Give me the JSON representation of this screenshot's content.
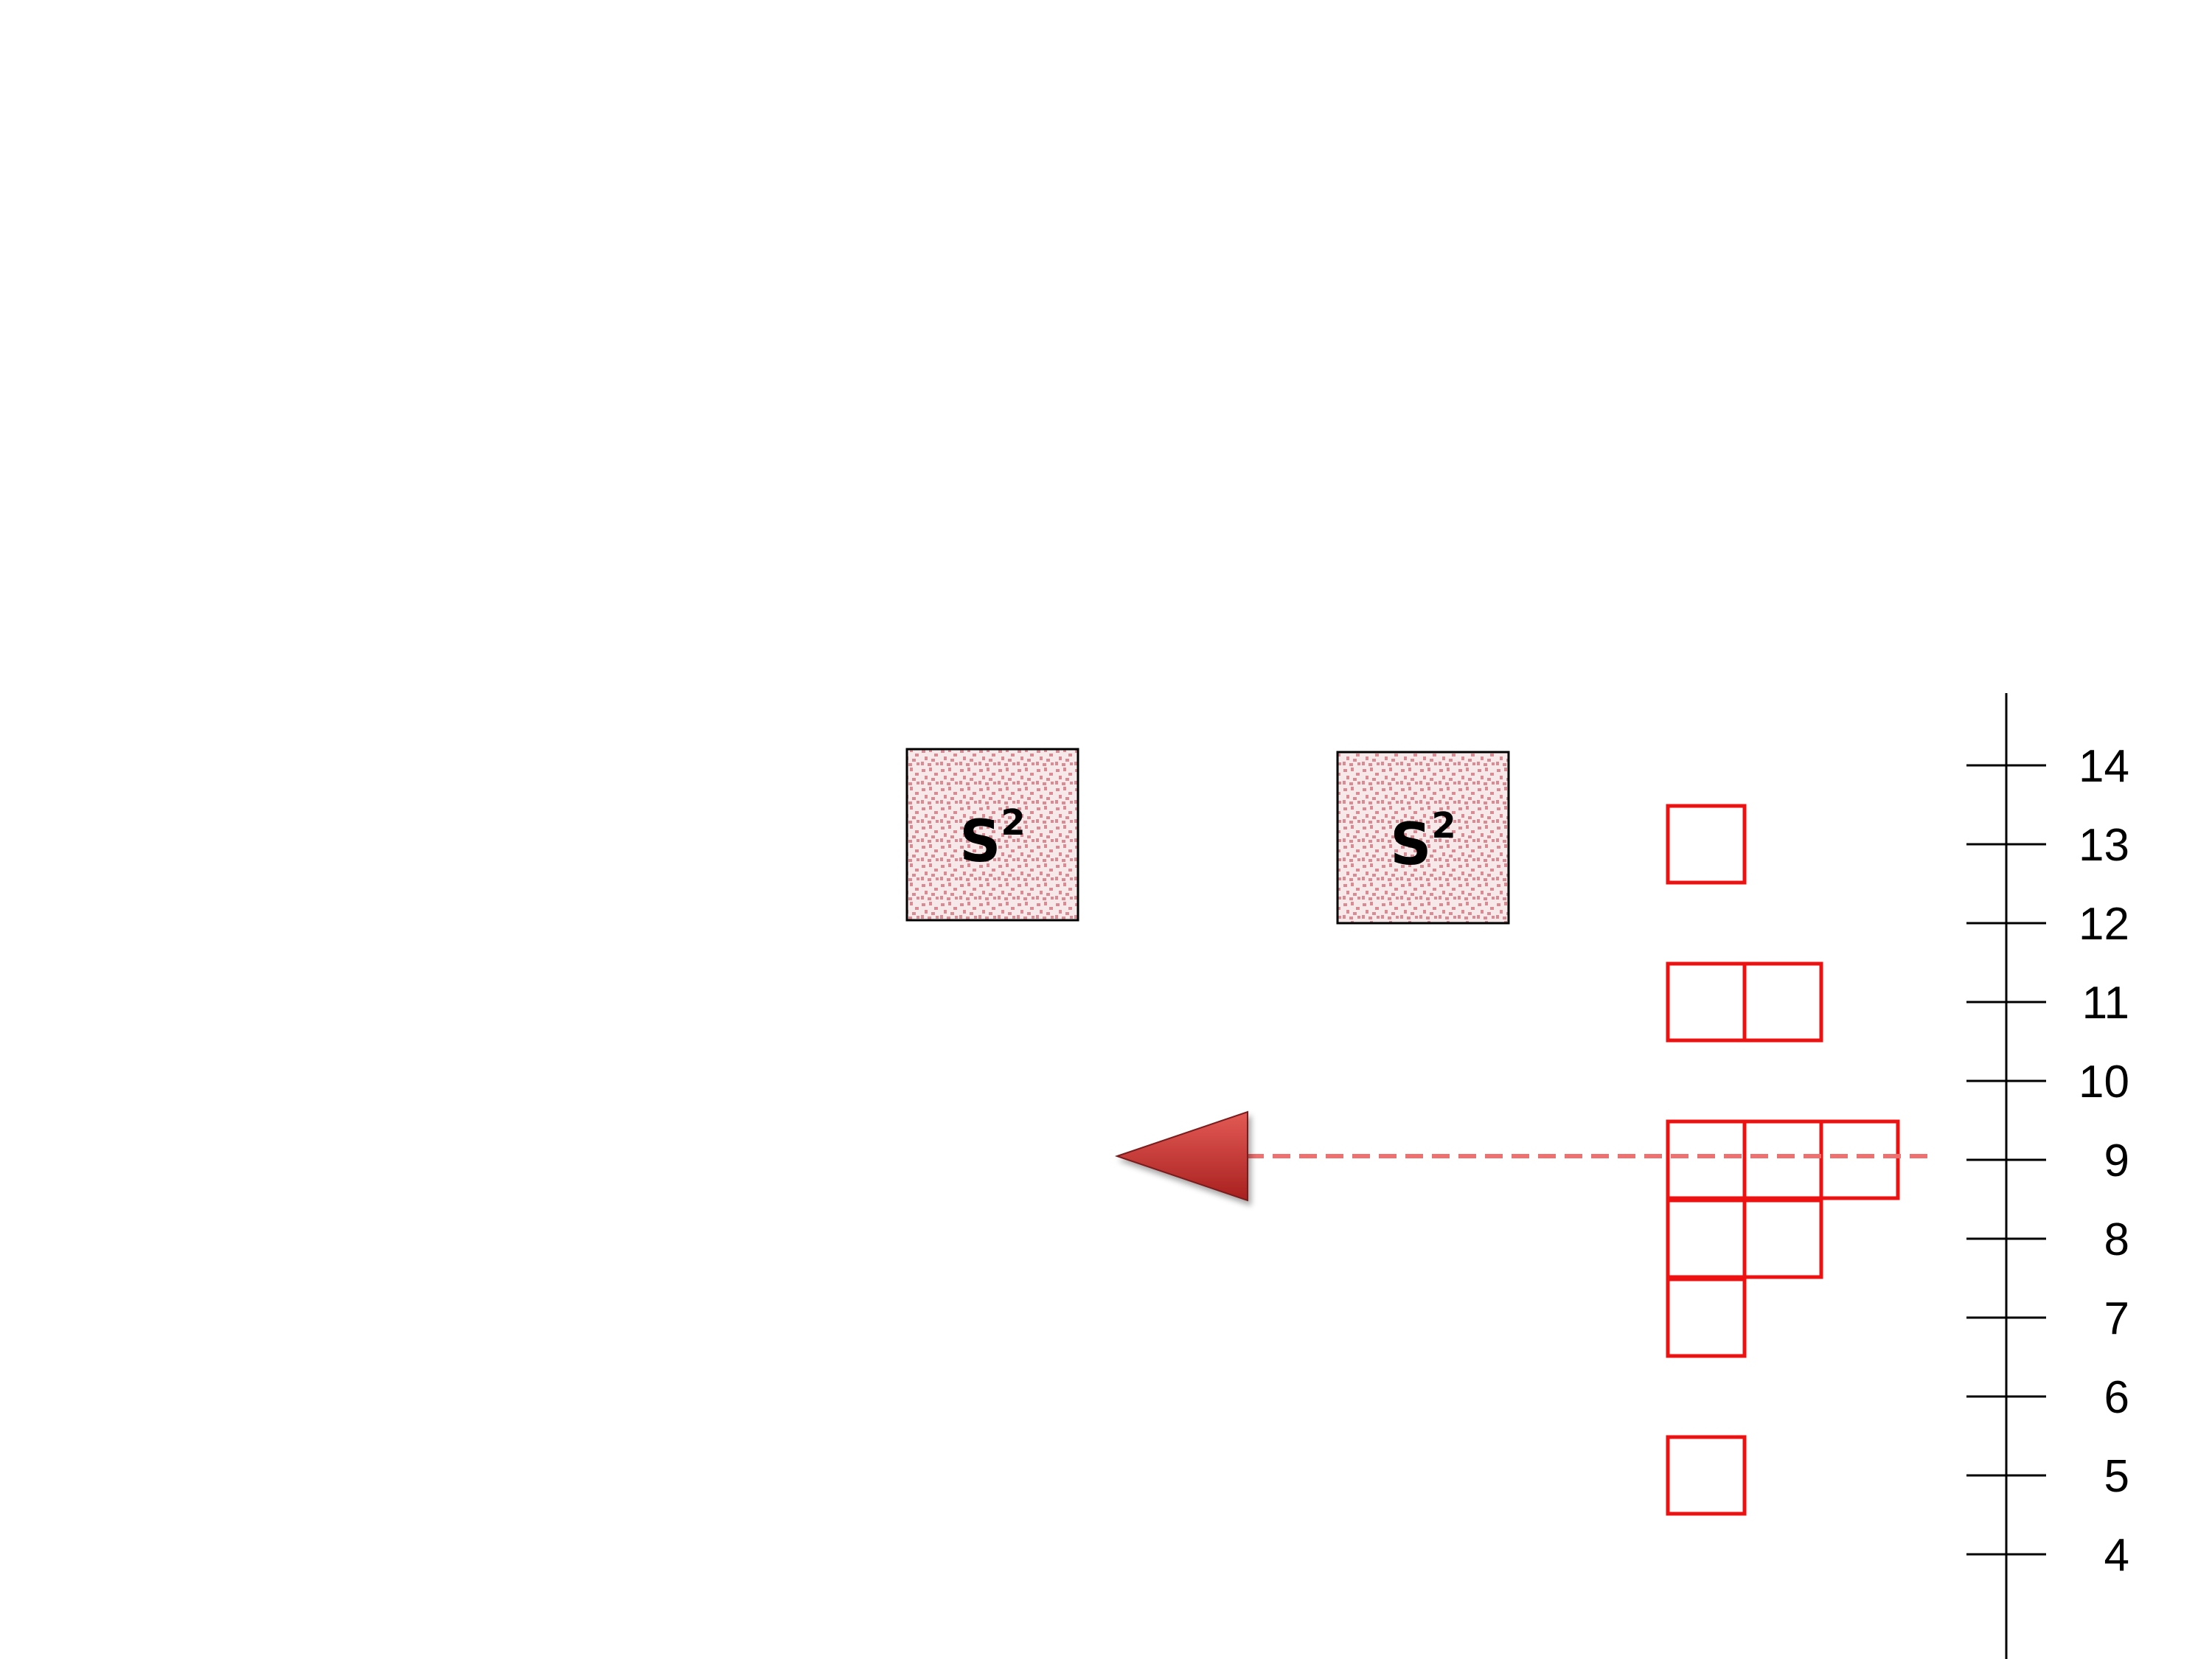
{
  "axis": {
    "ticks": [
      4,
      5,
      6,
      7,
      8,
      9,
      10,
      11,
      12,
      13,
      14
    ],
    "range": [
      4,
      14
    ]
  },
  "squares": [
    {
      "label": "S",
      "superscript": "2"
    },
    {
      "label": "S",
      "superscript": "2"
    }
  ],
  "red_cells": [
    {
      "value": 13,
      "count": 1
    },
    {
      "value": 11,
      "count": 2
    },
    {
      "value": 9,
      "count": 3
    },
    {
      "value": 8,
      "count": 2
    },
    {
      "value": 7,
      "count": 1
    },
    {
      "value": 5,
      "count": 1
    }
  ],
  "indicator": {
    "value": 9,
    "direction": "left"
  },
  "colors": {
    "cell_stroke": "#ee1111",
    "square_fill": "#f7e9ea",
    "square_dot": "#d98a92",
    "dashed_line": "#f07070",
    "arrow": "#c8302f",
    "axis": "#000000"
  }
}
